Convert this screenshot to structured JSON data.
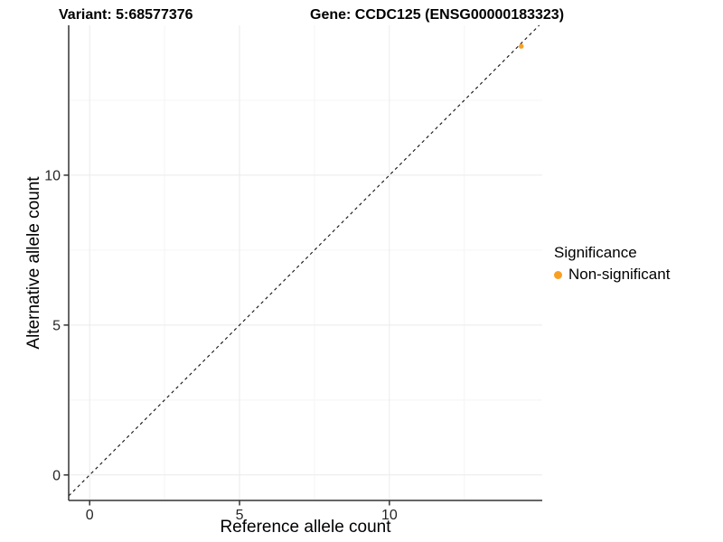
{
  "title": {
    "variant": "Variant: 5:68577376",
    "gene": "Gene: CCDC125 (ENSG00000183323)"
  },
  "legend": {
    "title": "Significance",
    "items": [
      {
        "label": "Non-significant",
        "color": "#F9A022"
      }
    ]
  },
  "chart_data": {
    "type": "scatter",
    "title": "Variant: 5:68577376    Gene: CCDC125 (ENSG00000183323)",
    "xlabel": "Reference allele count",
    "ylabel": "Alternative allele count",
    "xlim": [
      -0.7,
      15.1
    ],
    "ylim": [
      -0.85,
      15.0
    ],
    "x_ticks": [
      0,
      5,
      10
    ],
    "y_ticks": [
      0,
      5,
      10
    ],
    "x_minor_ticks": [
      2.5,
      7.5,
      12.5
    ],
    "y_minor_ticks": [
      2.5,
      7.5,
      12.5
    ],
    "grid": "major and minor, very light gray on white",
    "legend_position": "right",
    "series": [
      {
        "name": "Non-significant",
        "color": "#F9A022",
        "points": [
          {
            "x": 14.4,
            "y": 14.3
          }
        ]
      }
    ],
    "reference_line": {
      "type": "identity y=x",
      "style": "dashed",
      "color": "#111111"
    }
  },
  "colors": {
    "background": "#ffffff",
    "axis_line": "#333333",
    "grid_major": "#EAEAEA",
    "grid_minor": "#F5F5F5",
    "tick_text": "#262626",
    "point": "#F9A022"
  }
}
